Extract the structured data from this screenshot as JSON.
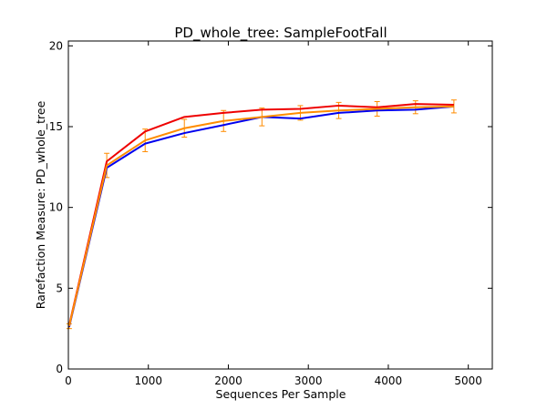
{
  "chart_data": {
    "type": "line",
    "title": "PD_whole_tree: SampleFootFall",
    "xlabel": "Sequences Per Sample",
    "ylabel": "Rarefaction Measure: PD_whole_tree",
    "xlim": [
      0,
      5300
    ],
    "ylim": [
      0,
      20.3
    ],
    "x_ticks": [
      0,
      1000,
      2000,
      3000,
      4000,
      5000
    ],
    "y_ticks": [
      0,
      5,
      10,
      15,
      20
    ],
    "legend": "none",
    "grid": false,
    "x": [
      10,
      480,
      960,
      1450,
      1940,
      2420,
      2900,
      3380,
      3860,
      4340,
      4820
    ],
    "series": [
      {
        "color": "#0000ee",
        "values": [
          2.6,
          12.45,
          13.95,
          14.6,
          15.1,
          15.6,
          15.5,
          15.85,
          16.0,
          16.05,
          16.25
        ],
        "error": []
      },
      {
        "color": "#ee0000",
        "values": [
          2.7,
          12.85,
          14.7,
          15.6,
          15.85,
          16.05,
          16.1,
          16.3,
          16.2,
          16.4,
          16.35
        ],
        "error": []
      },
      {
        "color": "#ff8c00",
        "values": [
          2.65,
          12.6,
          14.15,
          14.9,
          15.35,
          15.6,
          15.85,
          16.0,
          16.1,
          16.2,
          16.25
        ],
        "error": [
          0.15,
          0.75,
          0.7,
          0.55,
          0.65,
          0.55,
          0.45,
          0.5,
          0.45,
          0.4,
          0.4
        ]
      }
    ]
  }
}
